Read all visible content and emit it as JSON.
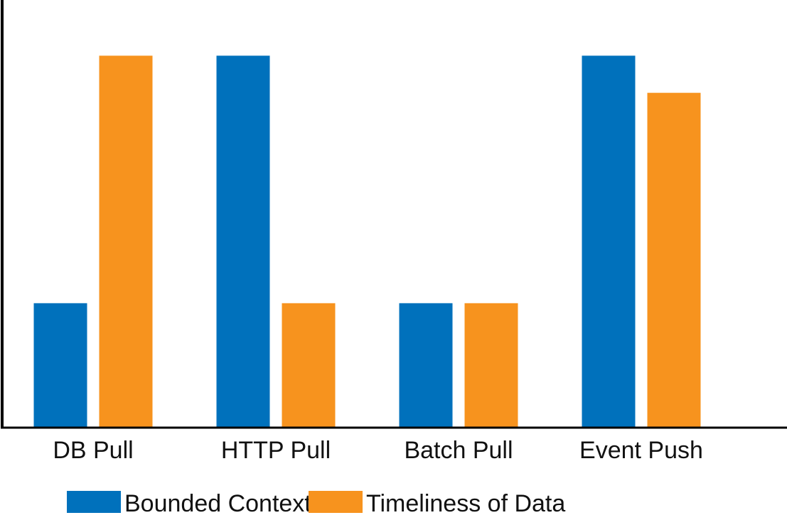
{
  "chart_data": {
    "type": "bar",
    "title": "",
    "xlabel": "",
    "ylabel": "",
    "categories": [
      "DB Pull",
      "HTTP Pull",
      "Batch Pull",
      "Event Push"
    ],
    "series": [
      {
        "name": "Bounded Context",
        "color": "#0071BC",
        "values": [
          1,
          3,
          1,
          3
        ]
      },
      {
        "name": "Timeliness of Data",
        "color": "#F7931E",
        "values": [
          3,
          1,
          1,
          2.7
        ]
      }
    ],
    "ylim": [
      0,
      3.45
    ],
    "grid": false,
    "y_ticks_shown": false,
    "legend_position": "bottom-left"
  }
}
